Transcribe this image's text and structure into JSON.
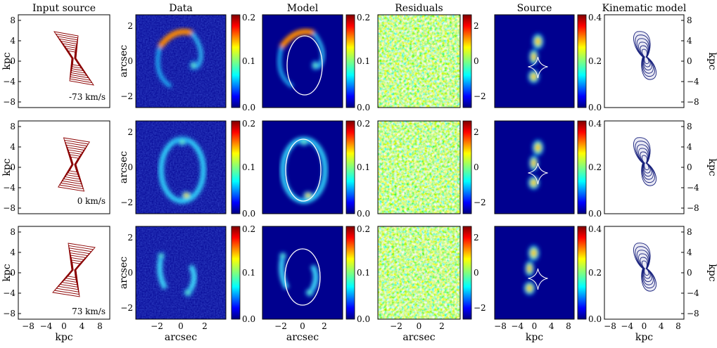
{
  "column_titles": [
    "Input source",
    "Data",
    "Model",
    "Residuals",
    "Source",
    "Kinematic model"
  ],
  "axis_labels": {
    "kpc": "kpc",
    "arcsec": "arcsec"
  },
  "rows": [
    {
      "velocity": "-73 km/s"
    },
    {
      "velocity": "0 km/s"
    },
    {
      "velocity": "73 km/s"
    }
  ],
  "kpc_ticks": [
    "8",
    "4",
    "0",
    "−4",
    "−8"
  ],
  "kpc_xticks": [
    "−8",
    "−4",
    "0",
    "4",
    "8"
  ],
  "arcsec_yticks": [
    "2",
    "0",
    "−2"
  ],
  "arcsec_xticks": [
    "−2",
    "0",
    "2"
  ],
  "colorbars": {
    "data": [
      "0.2",
      "0.1",
      "0.0"
    ],
    "model": [
      "0.2",
      "0.1",
      "0.0"
    ],
    "residuals": [
      "2",
      "0",
      "−2"
    ],
    "source": [
      "0.4",
      "0.2",
      "0.0"
    ]
  },
  "colors": {
    "input_contour": "#8b0000",
    "kinematic_contour": "#1a237e",
    "map_background": "#00008f",
    "caustic": "#ffffff"
  }
}
